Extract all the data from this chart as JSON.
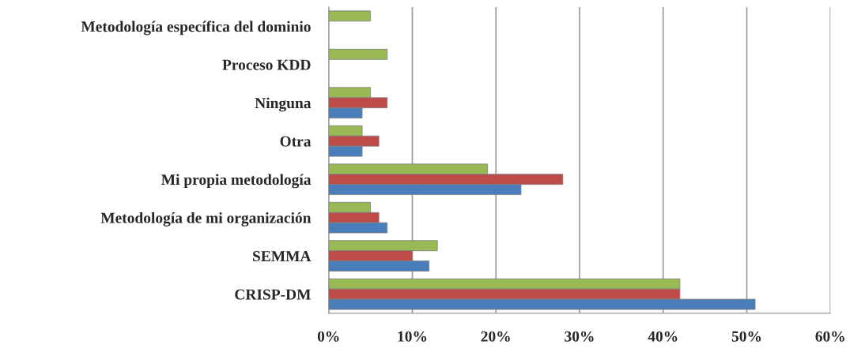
{
  "chart_data": {
    "type": "bar",
    "orientation": "horizontal",
    "categories": [
      "Metodología específica del dominio",
      "Proceso KDD",
      "Ninguna",
      "Otra",
      "Mi propia metodología",
      "Metodología de mi organización",
      "SEMMA",
      "CRISP-DM"
    ],
    "series": [
      {
        "color": "#98b954",
        "values": [
          5,
          7,
          5,
          4,
          19,
          5,
          13,
          42
        ]
      },
      {
        "color": "#be4b48",
        "values": [
          null,
          null,
          7,
          6,
          28,
          6,
          10,
          42
        ]
      },
      {
        "color": "#4a7ebb",
        "values": [
          null,
          null,
          4,
          4,
          23,
          7,
          12,
          51
        ]
      }
    ],
    "xlim": [
      0,
      60
    ],
    "xticks": [
      {
        "value": 0,
        "label": "0%"
      },
      {
        "value": 10,
        "label": "10%"
      },
      {
        "value": 20,
        "label": "20%"
      },
      {
        "value": 30,
        "label": "30%"
      },
      {
        "value": 40,
        "label": "40%"
      },
      {
        "value": 50,
        "label": "50%"
      },
      {
        "value": 60,
        "label": "60%"
      }
    ],
    "grid": "x"
  }
}
